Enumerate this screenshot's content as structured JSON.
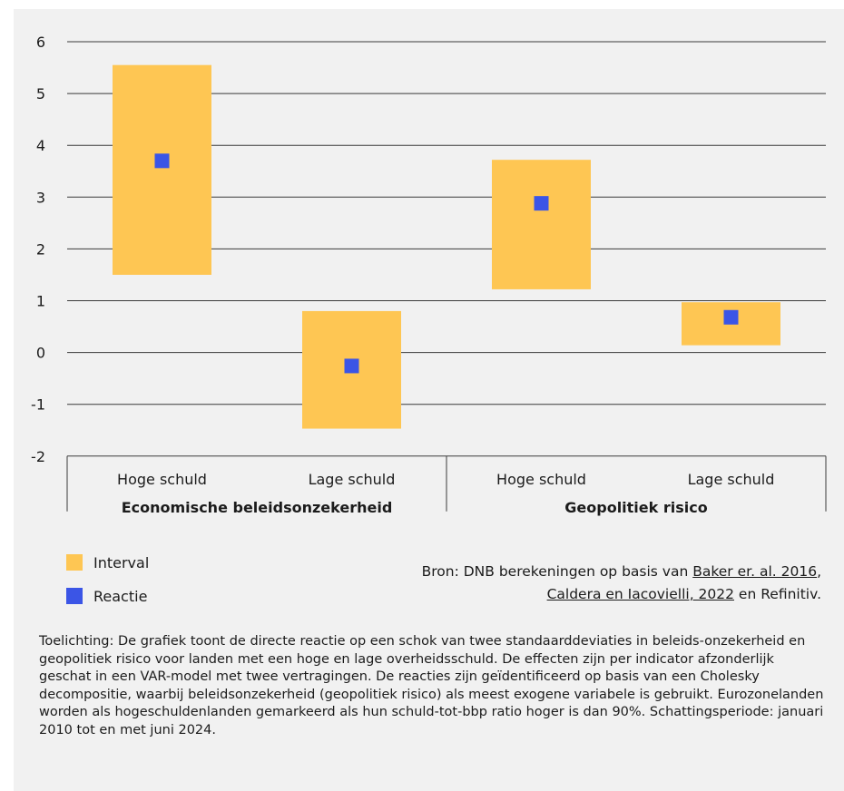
{
  "chart_data": {
    "type": "range-bar",
    "y_ticks": [
      "6",
      "5",
      "4",
      "3",
      "2",
      "1",
      "0",
      "-1",
      "-2"
    ],
    "ylim": [
      -2,
      6
    ],
    "grid": true,
    "groups": [
      {
        "label": "Economische beleidsonzekerheid",
        "categories": [
          {
            "label": "Hoge schuld",
            "interval": [
              1.5,
              5.55
            ],
            "reactie": 3.7
          },
          {
            "label": "Lage schuld",
            "interval": [
              -1.47,
              0.8
            ],
            "reactie": -0.26
          }
        ]
      },
      {
        "label": "Geopolitiek risico",
        "categories": [
          {
            "label": "Hoge schuld",
            "interval": [
              1.22,
              3.72
            ],
            "reactie": 2.88
          },
          {
            "label": "Lage schuld",
            "interval": [
              0.14,
              0.97
            ],
            "reactie": 0.68
          }
        ]
      }
    ],
    "series": [
      {
        "name": "Interval",
        "color": "#fec653"
      },
      {
        "name": "Reactie",
        "color": "#3b55e6"
      }
    ],
    "legend_position": "bottom-left"
  },
  "source": {
    "prefix": "Bron: DNB berekeningen op basis van ",
    "link1": "Baker er. al. 2016",
    "sep": ",",
    "link2": "Caldera en Iacovielli, 2022",
    "suffix": " en Refinitiv."
  },
  "note": "Toelichting: De grafiek toont de directe reactie op een schok van twee standaarddeviaties in beleids-onzekerheid en geopolitiek risico voor landen met een hoge en lage overheidsschuld. De effecten zijn per indicator afzonderlijk geschat in een VAR-model met twee vertragingen. De reacties zijn geïdentificeerd op basis van een Cholesky decompositie, waarbij beleidsonzekerheid (geopolitiek risico) als meest exogene variabele is gebruikt. Eurozonelanden worden als hogeschuldenlanden gemarkeerd als hun schuld-tot-bbp ratio hoger is dan 90%. Schattingsperiode: januari 2010 tot en met juni 2024."
}
